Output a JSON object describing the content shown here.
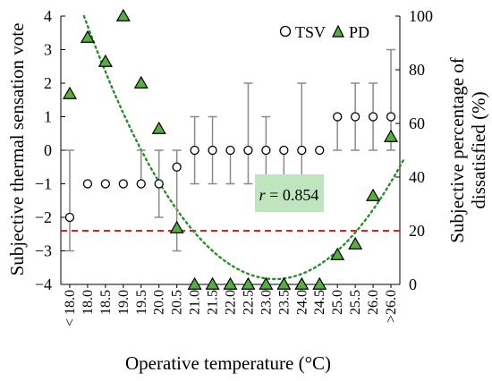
{
  "chart_data": {
    "type": "scatter",
    "xlabel": "Operative temperature (°C)",
    "ylabel_left": "Subjective thermal sensation vote",
    "ylabel_right": [
      "Subjective percentage of",
      "dissatisfied (%)"
    ],
    "categories": [
      "< 18.0",
      "18.0",
      "18.5",
      "19.0",
      "19.5",
      "20.0",
      "20.5",
      "21.0",
      "21.5",
      "22.0",
      "22.5",
      "23.0",
      "23.5",
      "24.0",
      "24.5",
      "25.0",
      "25.5",
      "26.0",
      ">26.0"
    ],
    "y_left_range": [
      -4,
      4
    ],
    "y_left_ticks": [
      -4,
      -3,
      -2,
      -1,
      0,
      1,
      2,
      3,
      4
    ],
    "y_right_range": [
      0,
      100
    ],
    "y_right_ticks": [
      0,
      20,
      40,
      60,
      80,
      100
    ],
    "series": [
      {
        "name": "TSV",
        "axis": "left",
        "marker": "open-circle",
        "values": [
          null,
          -1,
          -1,
          -1,
          -1,
          -1,
          -0.5,
          0,
          0,
          0,
          0,
          0,
          0,
          0,
          0,
          1,
          1,
          1,
          1
        ],
        "extra_first_point": -2,
        "error_low": [
          -3,
          -1,
          -1,
          -1,
          -1,
          -2,
          -3,
          -1,
          -1,
          -1,
          -1,
          -1,
          -1,
          -1,
          0,
          0,
          0,
          0,
          0
        ],
        "error_high": [
          0,
          -1,
          -1,
          -1,
          0,
          0,
          0,
          1,
          1,
          0,
          2,
          1,
          0,
          2,
          0,
          1,
          2,
          2,
          3
        ]
      },
      {
        "name": "PD",
        "axis": "right",
        "marker": "green-triangle",
        "color": "#5aaa46",
        "values": [
          71,
          92,
          83,
          100,
          75,
          58,
          21,
          0,
          0,
          0,
          0,
          0,
          0,
          0,
          0,
          11,
          15,
          33,
          55
        ]
      }
    ],
    "tsv_points": [
      -2,
      -1,
      -1,
      -1,
      -1,
      -1,
      -0.5,
      0,
      0,
      0,
      0,
      0,
      0,
      0,
      0,
      1,
      1,
      1,
      1
    ],
    "fit_curve": {
      "type": "quadratic",
      "style": "dotted",
      "color": "#2f8a2f",
      "vertex_x_index": 11.5,
      "vertex_y": 2,
      "left_x_index": 0.8,
      "left_y": 100
    },
    "threshold_line": {
      "value_right": 20,
      "color": "#e02020",
      "style": "dashed"
    },
    "annotation": {
      "text_italic": "r",
      "text_rest": " = 0.854",
      "background": "#bfe5bf"
    },
    "grid": false,
    "legend_position": "top-right"
  }
}
